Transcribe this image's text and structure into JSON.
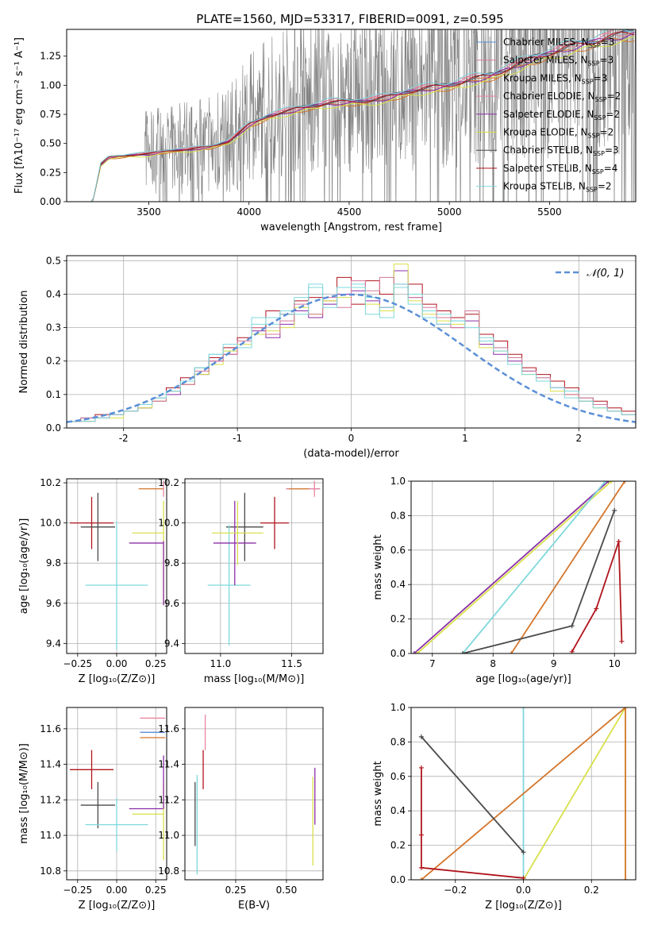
{
  "figure_title": "PLATE=1560, MJD=53317, FIBERID=0091, z=0.595",
  "models": [
    {
      "label": "Chabrier MILES, N",
      "sub": "SSP",
      "tail": "=3",
      "color": "#5b8fd6"
    },
    {
      "label": "Salpeter MILES, N",
      "sub": "SSP",
      "tail": "=3",
      "color": "#d4789a"
    },
    {
      "label": "Kroupa MILES, N",
      "sub": "SSP",
      "tail": "=3",
      "color": "#d4762c"
    },
    {
      "label": "Chabrier ELODIE, N",
      "sub": "SSP",
      "tail": "=2",
      "color": "#e8859e"
    },
    {
      "label": "Salpeter ELODIE, N",
      "sub": "SSP",
      "tail": "=2",
      "color": "#8a2ea8"
    },
    {
      "label": "Kroupa ELODIE, N",
      "sub": "SSP",
      "tail": "=2",
      "color": "#d8e04a"
    },
    {
      "label": "Chabrier STELIB, N",
      "sub": "SSP",
      "tail": "=3",
      "color": "#4a4a4a"
    },
    {
      "label": "Salpeter STELIB, N",
      "sub": "SSP",
      "tail": "=4",
      "color": "#b0141c"
    },
    {
      "label": "Kroupa STELIB, N",
      "sub": "SSP",
      "tail": "=2",
      "color": "#7fd8dc"
    }
  ],
  "chart_data": [
    {
      "id": "spectrum",
      "type": "line",
      "xlabel": "wavelength [Angstrom, rest frame]",
      "ylabel": "Flux [fλ10⁻¹⁷ erg cm⁻² s⁻¹ A⁻¹]",
      "xlim": [
        3090,
        5930
      ],
      "ylim": [
        0,
        1.48
      ],
      "xticks": [
        3500,
        4000,
        4500,
        5000,
        5500
      ],
      "yticks": [
        0.0,
        0.25,
        0.5,
        0.75,
        1.0,
        1.25
      ],
      "grid": false,
      "legend": "right",
      "data_color": "#808080",
      "continuum_x": [
        3220,
        3260,
        3300,
        3400,
        3500,
        3600,
        3700,
        3800,
        3900,
        4000,
        4100,
        4200,
        4300,
        4400,
        4500,
        4600,
        4700,
        4800,
        4900,
        5000,
        5100,
        5200,
        5300,
        5400,
        5500,
        5600,
        5700,
        5800,
        5930
      ],
      "continuum_y": [
        0.0,
        0.32,
        0.38,
        0.4,
        0.41,
        0.44,
        0.45,
        0.47,
        0.52,
        0.66,
        0.74,
        0.78,
        0.82,
        0.85,
        0.86,
        0.87,
        0.9,
        0.95,
        0.98,
        1.0,
        1.05,
        1.08,
        1.15,
        1.22,
        1.28,
        1.33,
        1.37,
        1.42,
        1.45
      ]
    },
    {
      "id": "residuals",
      "type": "histogram",
      "xlabel": "(data-model)/error",
      "ylabel": "Normed distribution",
      "xlim": [
        -2.5,
        2.5
      ],
      "ylim": [
        0,
        0.515
      ],
      "xticks": [
        -2,
        -1,
        0,
        1,
        2
      ],
      "yticks": [
        0.0,
        0.1,
        0.2,
        0.3,
        0.4,
        0.5
      ],
      "grid": true,
      "legend": "top-right",
      "gaussian_label": "𝒩(0, 1)",
      "gaussian_color": "#5b8fd6",
      "bin_edges": [
        -2.5,
        -2.375,
        -2.25,
        -2.125,
        -2.0,
        -1.875,
        -1.75,
        -1.625,
        -1.5,
        -1.375,
        -1.25,
        -1.125,
        -1.0,
        -0.875,
        -0.75,
        -0.625,
        -0.5,
        -0.375,
        -0.25,
        -0.125,
        0.0,
        0.125,
        0.25,
        0.375,
        0.5,
        0.625,
        0.75,
        0.875,
        1.0,
        1.125,
        1.25,
        1.375,
        1.5,
        1.625,
        1.75,
        1.875,
        2.0,
        2.125,
        2.25,
        2.375,
        2.5
      ],
      "series": [
        {
          "model": 7,
          "values": [
            0.02,
            0.03,
            0.04,
            0.04,
            0.05,
            0.07,
            0.09,
            0.12,
            0.15,
            0.18,
            0.21,
            0.24,
            0.27,
            0.3,
            0.35,
            0.34,
            0.38,
            0.39,
            0.38,
            0.45,
            0.37,
            0.44,
            0.4,
            0.42,
            0.43,
            0.37,
            0.35,
            0.33,
            0.34,
            0.28,
            0.26,
            0.22,
            0.18,
            0.16,
            0.14,
            0.12,
            0.09,
            0.08,
            0.06,
            0.05
          ]
        },
        {
          "model": 8,
          "values": [
            0.02,
            0.03,
            0.03,
            0.04,
            0.05,
            0.06,
            0.09,
            0.11,
            0.14,
            0.18,
            0.22,
            0.23,
            0.26,
            0.33,
            0.31,
            0.34,
            0.39,
            0.42,
            0.37,
            0.4,
            0.43,
            0.39,
            0.33,
            0.42,
            0.4,
            0.35,
            0.34,
            0.32,
            0.35,
            0.27,
            0.24,
            0.21,
            0.17,
            0.15,
            0.12,
            0.11,
            0.09,
            0.07,
            0.05,
            0.04
          ]
        },
        {
          "model": 4,
          "values": [
            0.02,
            0.02,
            0.03,
            0.04,
            0.05,
            0.06,
            0.08,
            0.1,
            0.13,
            0.16,
            0.2,
            0.22,
            0.26,
            0.29,
            0.27,
            0.31,
            0.35,
            0.33,
            0.37,
            0.4,
            0.41,
            0.38,
            0.36,
            0.47,
            0.39,
            0.33,
            0.31,
            0.3,
            0.32,
            0.25,
            0.22,
            0.2,
            0.17,
            0.14,
            0.12,
            0.1,
            0.08,
            0.07,
            0.05,
            0.04
          ]
        },
        {
          "model": 5,
          "values": [
            0.02,
            0.02,
            0.03,
            0.03,
            0.05,
            0.06,
            0.08,
            0.11,
            0.13,
            0.16,
            0.19,
            0.23,
            0.25,
            0.28,
            0.29,
            0.3,
            0.36,
            0.34,
            0.38,
            0.39,
            0.42,
            0.37,
            0.35,
            0.49,
            0.38,
            0.34,
            0.32,
            0.31,
            0.35,
            0.24,
            0.23,
            0.21,
            0.16,
            0.14,
            0.11,
            0.1,
            0.08,
            0.06,
            0.05,
            0.04
          ]
        },
        {
          "model": 1,
          "values": [
            0.02,
            0.03,
            0.03,
            0.04,
            0.05,
            0.07,
            0.08,
            0.11,
            0.13,
            0.17,
            0.2,
            0.22,
            0.26,
            0.3,
            0.28,
            0.32,
            0.37,
            0.34,
            0.39,
            0.36,
            0.44,
            0.41,
            0.45,
            0.43,
            0.39,
            0.36,
            0.33,
            0.3,
            0.35,
            0.26,
            0.24,
            0.21,
            0.17,
            0.15,
            0.12,
            0.1,
            0.09,
            0.07,
            0.05,
            0.04
          ]
        },
        {
          "model": 8,
          "values": [
            0.02,
            0.02,
            0.03,
            0.04,
            0.05,
            0.07,
            0.09,
            0.11,
            0.14,
            0.18,
            0.22,
            0.25,
            0.24,
            0.31,
            0.33,
            0.35,
            0.34,
            0.43,
            0.36,
            0.42,
            0.42,
            0.34,
            0.36,
            0.43,
            0.37,
            0.33,
            0.31,
            0.32,
            0.3,
            0.26,
            0.23,
            0.19,
            0.16,
            0.14,
            0.12,
            0.09,
            0.08,
            0.06,
            0.05,
            0.04
          ]
        }
      ],
      "gaussian": {
        "mean": 0,
        "sigma": 1
      }
    },
    {
      "id": "age_vs_Z",
      "type": "errorbar",
      "xlabel": "Z [log₁₀(Z/Z⊙)]",
      "ylabel": "age  [log₁₀(age/yr)]",
      "xlim": [
        -0.32,
        0.32
      ],
      "ylim": [
        9.35,
        10.22
      ],
      "xticks": [
        -0.25,
        0.0,
        0.25
      ],
      "xticklabels": [
        "−0.25",
        "0.00",
        "0.25"
      ],
      "yticks": [
        9.4,
        9.6,
        9.8,
        10.0,
        10.2
      ],
      "grid": true,
      "points": [
        {
          "model": 7,
          "x": -0.16,
          "xerr": 0.14,
          "y": 10.0,
          "yerr": 0.13
        },
        {
          "model": 6,
          "x": -0.12,
          "xerr": 0.11,
          "y": 9.98,
          "yerr": 0.17
        },
        {
          "model": 8,
          "x": 0.0,
          "xerr": 0.2,
          "y": 9.69,
          "yerr": 0.32
        },
        {
          "model": 4,
          "x": 0.19,
          "xerr": 0.11,
          "y": 9.9,
          "yerr": 0.0
        },
        {
          "model": 5,
          "x": 0.2,
          "xerr": 0.1,
          "y": 9.95,
          "yerr": 0.0
        },
        {
          "model": 2,
          "x": 0.22,
          "xerr": 0.08,
          "y": 10.17,
          "yerr": 0.0
        },
        {
          "model": 3,
          "x": 0.3,
          "xerr": 0.0,
          "y": 10.17,
          "yerr": 0.04
        },
        {
          "model": 5,
          "x": 0.3,
          "xerr": 0.0,
          "y": 9.85,
          "yerr": 0.26
        },
        {
          "model": 4,
          "x": 0.3,
          "xerr": 0.0,
          "y": 9.75,
          "yerr": 0.16
        }
      ]
    },
    {
      "id": "age_vs_mass",
      "type": "errorbar",
      "xlabel": "mass [log₁₀(M/M⊙)]",
      "ylabel": "",
      "xlim": [
        10.75,
        11.72
      ],
      "ylim": [
        9.35,
        10.22
      ],
      "xticks": [
        11.0,
        11.5
      ],
      "xticklabels": [
        "11.0",
        "11.5"
      ],
      "yticks": [
        9.4,
        9.6,
        9.8,
        10.0,
        10.2
      ],
      "grid": true,
      "points": [
        {
          "model": 7,
          "x": 11.38,
          "xerr": 0.1,
          "y": 10.0,
          "yerr": 0.13
        },
        {
          "model": 6,
          "x": 11.17,
          "xerr": 0.13,
          "y": 9.98,
          "yerr": 0.17
        },
        {
          "model": 8,
          "x": 11.06,
          "xerr": 0.15,
          "y": 9.69,
          "yerr": 0.3
        },
        {
          "model": 4,
          "x": 11.1,
          "xerr": 0.15,
          "y": 9.9,
          "yerr": 0.21
        },
        {
          "model": 5,
          "x": 11.12,
          "xerr": 0.18,
          "y": 9.95,
          "yerr": 0.16
        },
        {
          "model": 1,
          "x": 11.58,
          "xerr": 0.12,
          "y": 10.17,
          "yerr": 0.0
        },
        {
          "model": 3,
          "x": 11.66,
          "xerr": 0.02,
          "y": 10.17,
          "yerr": 0.04
        },
        {
          "model": 2,
          "x": 11.55,
          "xerr": 0.07,
          "y": 10.17,
          "yerr": 0.0
        }
      ]
    },
    {
      "id": "massweight_vs_age",
      "type": "line",
      "xlabel": "age  [log₁₀(age/yr)]",
      "ylabel": "mass weight",
      "xlim": [
        6.65,
        10.35
      ],
      "ylim": [
        0,
        1.0
      ],
      "xticks": [
        7,
        8,
        9,
        10
      ],
      "yticks": [
        0.0,
        0.2,
        0.4,
        0.6,
        0.8,
        1.0
      ],
      "grid": true,
      "series": [
        {
          "model": 4,
          "x": [
            6.7,
            9.9
          ],
          "y": [
            0.0,
            1.0
          ]
        },
        {
          "model": 5,
          "x": [
            6.75,
            9.95
          ],
          "y": [
            0.0,
            1.0
          ]
        },
        {
          "model": 8,
          "x": [
            7.5,
            9.85
          ],
          "y": [
            0.0,
            1.0
          ]
        },
        {
          "model": 2,
          "x": [
            8.3,
            10.17
          ],
          "y": [
            0.0,
            1.0
          ]
        },
        {
          "model": 6,
          "x": [
            7.5,
            9.3,
            10.0
          ],
          "y": [
            0.0,
            0.16,
            0.83
          ]
        },
        {
          "model": 7,
          "x": [
            9.3,
            9.7,
            10.07,
            10.12
          ],
          "y": [
            0.01,
            0.26,
            0.65,
            0.07
          ]
        }
      ]
    },
    {
      "id": "mass_vs_Z",
      "type": "errorbar",
      "xlabel": "Z [log₁₀(Z/Z⊙)]",
      "ylabel": "mass [log₁₀(M/M⊙)]",
      "xlim": [
        -0.32,
        0.32
      ],
      "ylim": [
        10.75,
        11.72
      ],
      "xticks": [
        -0.25,
        0.0,
        0.25
      ],
      "xticklabels": [
        "−0.25",
        "0.00",
        "0.25"
      ],
      "yticks": [
        10.8,
        11.0,
        11.2,
        11.4,
        11.6
      ],
      "grid": true,
      "points": [
        {
          "model": 7,
          "x": -0.16,
          "xerr": 0.14,
          "y": 11.37,
          "yerr": 0.11
        },
        {
          "model": 6,
          "x": -0.12,
          "xerr": 0.11,
          "y": 11.17,
          "yerr": 0.13
        },
        {
          "model": 8,
          "x": 0.0,
          "xerr": 0.2,
          "y": 11.06,
          "yerr": 0.15
        },
        {
          "model": 4,
          "x": 0.19,
          "xerr": 0.11,
          "y": 11.15,
          "yerr": 0.0
        },
        {
          "model": 5,
          "x": 0.2,
          "xerr": 0.1,
          "y": 11.12,
          "yerr": 0.0
        },
        {
          "model": 3,
          "x": 0.23,
          "xerr": 0.08,
          "y": 11.66,
          "yerr": 0.0
        },
        {
          "model": 0,
          "x": 0.23,
          "xerr": 0.08,
          "y": 11.58,
          "yerr": 0.0
        },
        {
          "model": 2,
          "x": 0.23,
          "xerr": 0.08,
          "y": 11.55,
          "yerr": 0.0
        },
        {
          "model": 5,
          "x": 0.3,
          "xerr": 0.0,
          "y": 11.08,
          "yerr": 0.22
        },
        {
          "model": 4,
          "x": 0.3,
          "xerr": 0.0,
          "y": 11.3,
          "yerr": 0.15
        }
      ]
    },
    {
      "id": "mass_vs_EBV",
      "type": "errorbar",
      "xlabel": "E(B-V)",
      "ylabel": "",
      "xlim": [
        0.0,
        0.68
      ],
      "ylim": [
        10.75,
        11.72
      ],
      "xticks": [
        0.25,
        0.5
      ],
      "xticklabels": [
        "0.25",
        "0.50"
      ],
      "yticks": [
        10.8,
        11.0,
        11.2,
        11.4,
        11.6
      ],
      "grid": true,
      "points": [
        {
          "model": 6,
          "x": 0.05,
          "xerr": 0.0,
          "y": 11.12,
          "yerr": 0.18
        },
        {
          "model": 8,
          "x": 0.06,
          "xerr": 0.0,
          "y": 11.06,
          "yerr": 0.28
        },
        {
          "model": 7,
          "x": 0.09,
          "xerr": 0.0,
          "y": 11.37,
          "yerr": 0.11
        },
        {
          "model": 3,
          "x": 0.1,
          "xerr": 0.0,
          "y": 11.58,
          "yerr": 0.1
        },
        {
          "model": 5,
          "x": 0.63,
          "xerr": 0.0,
          "y": 11.08,
          "yerr": 0.25
        },
        {
          "model": 4,
          "x": 0.64,
          "xerr": 0.0,
          "y": 11.22,
          "yerr": 0.16
        }
      ]
    },
    {
      "id": "massweight_vs_Z",
      "type": "line",
      "xlabel": "Z [log₁₀(Z/Z⊙)]",
      "ylabel": "mass weight",
      "xlim": [
        -0.33,
        0.33
      ],
      "ylim": [
        0,
        1.0
      ],
      "xticks": [
        -0.2,
        0.0,
        0.2
      ],
      "xticklabels": [
        "−0.2",
        "0.0",
        "0.2"
      ],
      "yticks": [
        0.0,
        0.2,
        0.4,
        0.6,
        0.8,
        1.0
      ],
      "grid": true,
      "series": [
        {
          "model": 8,
          "x": [
            0.0,
            0.0
          ],
          "y": [
            0.0,
            1.0
          ]
        },
        {
          "model": 5,
          "x": [
            0.0,
            0.3,
            0.3
          ],
          "y": [
            0.0,
            1.0,
            0.0
          ]
        },
        {
          "model": 2,
          "x": [
            -0.3,
            0.3,
            0.3
          ],
          "y": [
            0.0,
            1.0,
            0.0
          ]
        },
        {
          "model": 6,
          "x": [
            -0.3,
            0.0
          ],
          "y": [
            0.83,
            0.16
          ]
        },
        {
          "model": 7,
          "x": [
            -0.3,
            -0.3,
            -0.3,
            0.0
          ],
          "y": [
            0.65,
            0.26,
            0.07,
            0.01
          ]
        }
      ]
    }
  ]
}
